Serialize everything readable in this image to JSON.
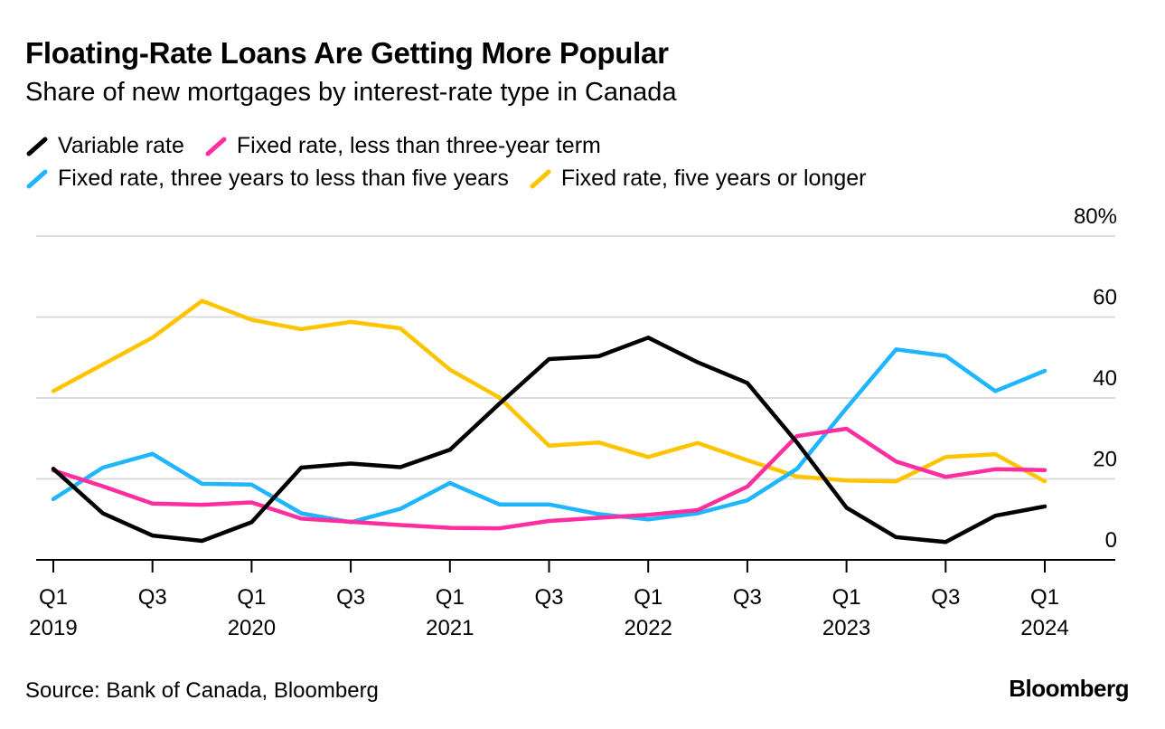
{
  "title": "Floating-Rate Loans Are Getting More Popular",
  "subtitle": "Share of new mortgages by interest-rate type in Canada",
  "source": "Source: Bank of Canada, Bloomberg",
  "brand": "Bloomberg",
  "chart_data": {
    "type": "line",
    "title": "Floating-Rate Loans Are Getting More Popular",
    "subtitle": "Share of new mortgages by interest-rate type in Canada",
    "xlabel": "",
    "ylabel": "",
    "ylim": [
      0,
      80
    ],
    "y_ticks": [
      {
        "value": 0,
        "label": "0"
      },
      {
        "value": 20,
        "label": "20"
      },
      {
        "value": 40,
        "label": "40"
      },
      {
        "value": 60,
        "label": "60"
      },
      {
        "value": 80,
        "label": "80%"
      }
    ],
    "x_ticks": [
      {
        "index": 0,
        "quarter": "Q1",
        "year": "2019"
      },
      {
        "index": 2,
        "quarter": "Q3",
        "year": ""
      },
      {
        "index": 4,
        "quarter": "Q1",
        "year": "2020"
      },
      {
        "index": 6,
        "quarter": "Q3",
        "year": ""
      },
      {
        "index": 8,
        "quarter": "Q1",
        "year": "2021"
      },
      {
        "index": 10,
        "quarter": "Q3",
        "year": ""
      },
      {
        "index": 12,
        "quarter": "Q1",
        "year": "2022"
      },
      {
        "index": 14,
        "quarter": "Q3",
        "year": ""
      },
      {
        "index": 16,
        "quarter": "Q1",
        "year": "2023"
      },
      {
        "index": 18,
        "quarter": "Q3",
        "year": ""
      },
      {
        "index": 20,
        "quarter": "Q1",
        "year": "2024"
      }
    ],
    "categories": [
      "Q1 2019",
      "Q2 2019",
      "Q3 2019",
      "Q4 2019",
      "Q1 2020",
      "Q2 2020",
      "Q3 2020",
      "Q4 2020",
      "Q1 2021",
      "Q2 2021",
      "Q3 2021",
      "Q4 2021",
      "Q1 2022",
      "Q2 2022",
      "Q3 2022",
      "Q4 2022",
      "Q1 2023",
      "Q2 2023",
      "Q3 2023",
      "Q4 2023",
      "Q1 2024"
    ],
    "grid": true,
    "legend_position": "top-left",
    "series": [
      {
        "name": "Variable rate",
        "color": "#000000",
        "values": [
          22.5,
          11.5,
          6.0,
          4.7,
          9.3,
          22.8,
          23.8,
          22.9,
          27.2,
          38.6,
          49.6,
          50.3,
          54.9,
          48.8,
          43.7,
          29.0,
          12.9,
          5.6,
          4.4,
          10.9,
          13.2
        ]
      },
      {
        "name": "Fixed rate, less than three-year term",
        "color": "#ff2ea0",
        "values": [
          22.1,
          18.2,
          13.9,
          13.6,
          14.2,
          10.2,
          9.4,
          8.6,
          7.9,
          7.8,
          9.6,
          10.4,
          11.1,
          12.3,
          18.1,
          30.6,
          32.4,
          24.3,
          20.5,
          22.4,
          22.2
        ]
      },
      {
        "name": "Fixed rate, three years to less than five years",
        "color": "#1fb6ff",
        "values": [
          15.0,
          22.8,
          26.2,
          18.8,
          18.6,
          11.5,
          9.3,
          12.6,
          19.0,
          13.7,
          13.7,
          11.3,
          10.0,
          11.5,
          14.7,
          22.5,
          37.5,
          52.0,
          50.4,
          41.7,
          46.7
        ]
      },
      {
        "name": "Fixed rate, five years or longer",
        "color": "#ffc400",
        "values": [
          41.7,
          48.3,
          54.9,
          64.0,
          59.3,
          57.0,
          58.8,
          57.2,
          47.0,
          40.1,
          28.2,
          29.0,
          25.4,
          28.9,
          24.6,
          20.6,
          19.6,
          19.4,
          25.4,
          26.1,
          19.4
        ]
      }
    ]
  }
}
